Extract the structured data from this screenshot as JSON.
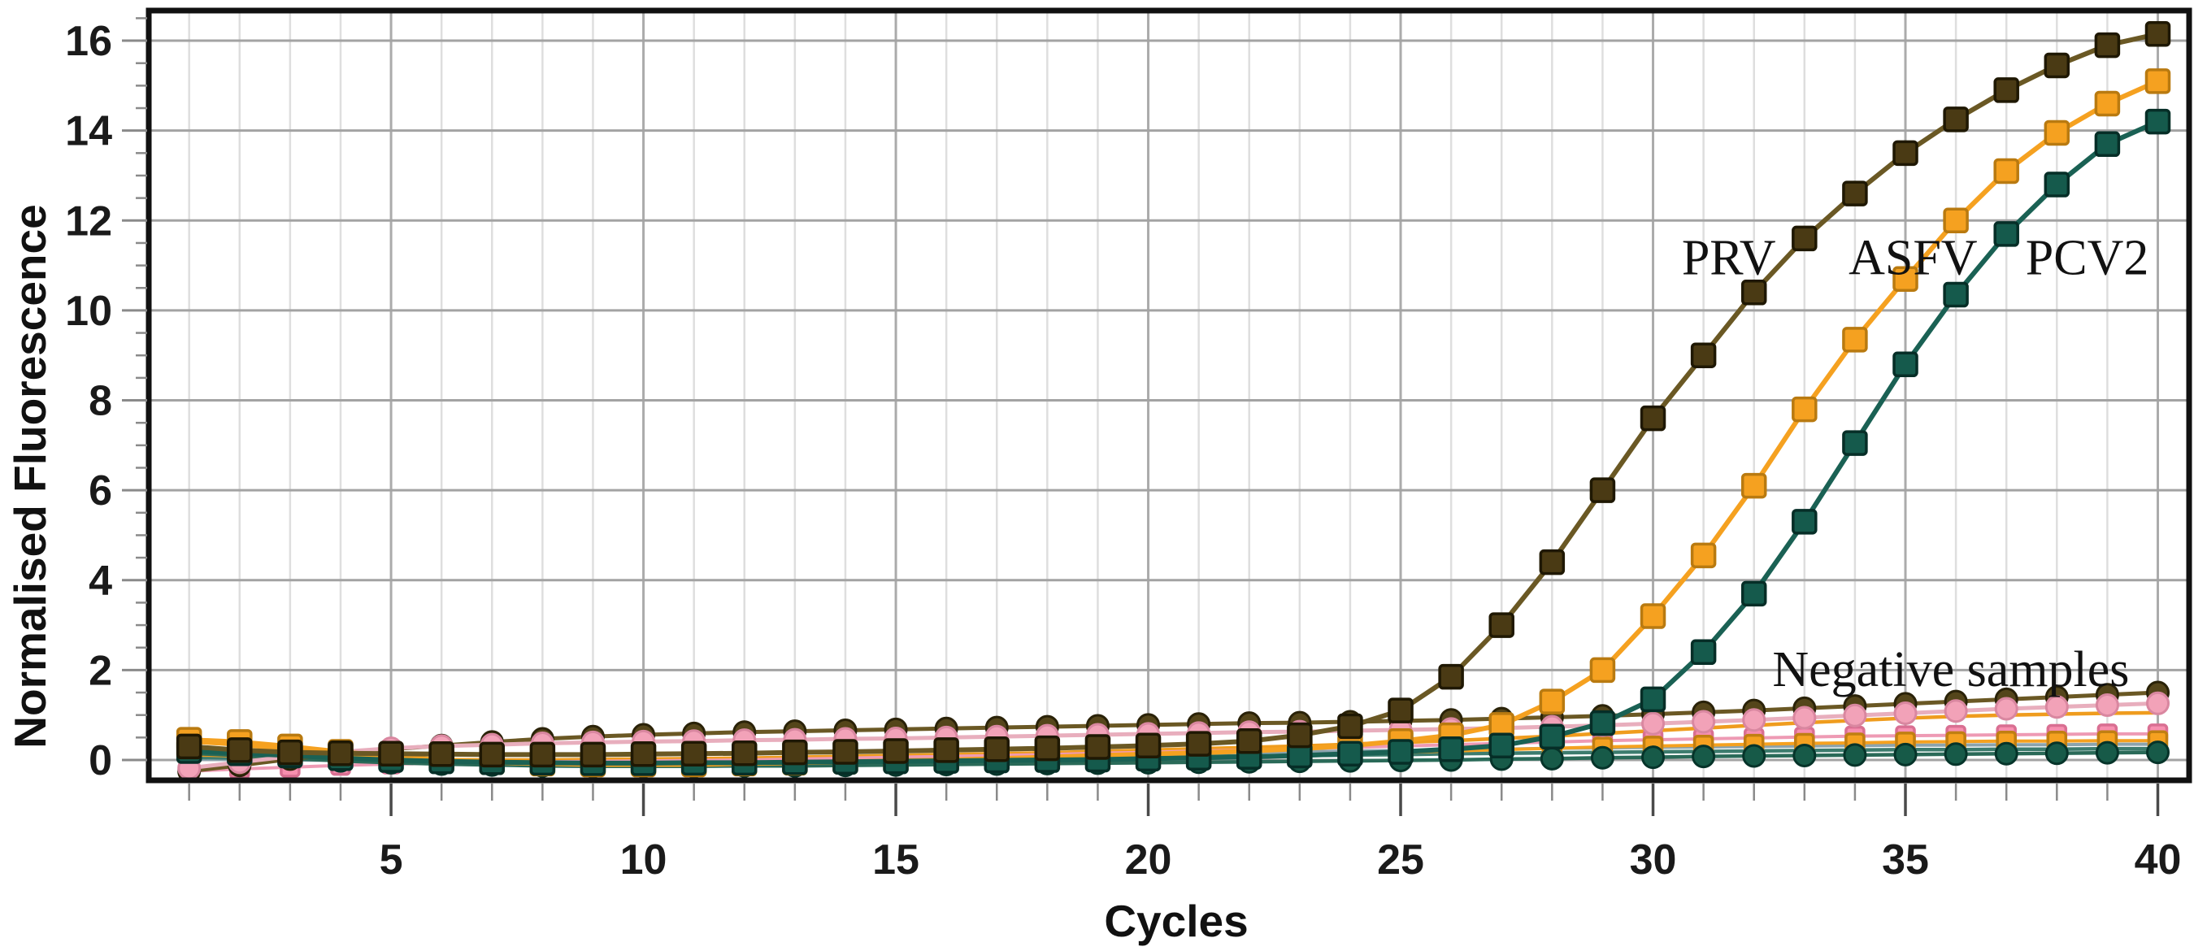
{
  "figure": {
    "background": "#ffffff",
    "frame_color": "#111111",
    "grid_minor_color": "#dedede",
    "grid_major_color": "#ababab",
    "grid_h_color": "#a3a3a3",
    "tick_major_color": "#4a4a4a",
    "tick_minor_color": "#8a8a8a"
  },
  "chart_data": {
    "type": "line",
    "title": "",
    "xlabel": "Cycles",
    "ylabel": "Normalised Fluorescence",
    "xlim": [
      0.2,
      40.62
    ],
    "ylim": [
      -0.452,
      16.67
    ],
    "x_major_ticks": [
      5,
      10,
      15,
      20,
      25,
      30,
      35,
      40
    ],
    "x_minor_tick_step": 1,
    "y_major_ticks": [
      0,
      2,
      4,
      6,
      8,
      10,
      12,
      14,
      16
    ],
    "y_minor_tick_step": 0.5,
    "grid": {
      "vertical_minor_every_cycle": true,
      "vertical_major_every_5": true,
      "horizontal_major_every_2": true
    },
    "legend_position": "none",
    "x": [
      1,
      2,
      3,
      4,
      5,
      6,
      7,
      8,
      9,
      10,
      11,
      12,
      13,
      14,
      15,
      16,
      17,
      18,
      19,
      20,
      21,
      22,
      23,
      24,
      25,
      26,
      27,
      28,
      29,
      30,
      31,
      32,
      33,
      34,
      35,
      36,
      37,
      38,
      39,
      40
    ],
    "series": [
      {
        "name": "negative-gray-line",
        "group": "Negative samples",
        "marker": "none",
        "line_color": "#8ba3ad",
        "line_width": 4,
        "values": [
          0.02,
          0.01,
          0.0,
          -0.01,
          -0.02,
          -0.02,
          -0.02,
          -0.02,
          -0.01,
          0.0,
          0.01,
          0.02,
          0.03,
          0.05,
          0.06,
          0.08,
          0.09,
          0.11,
          0.12,
          0.14,
          0.15,
          0.17,
          0.18,
          0.2,
          0.21,
          0.23,
          0.24,
          0.26,
          0.27,
          0.28,
          0.29,
          0.3,
          0.31,
          0.32,
          0.33,
          0.33,
          0.34,
          0.34,
          0.35,
          0.35
        ]
      },
      {
        "name": "negative-teal-line",
        "group": "Negative samples",
        "marker": "none",
        "line_color": "#3d7c6e",
        "line_width": 4.5,
        "values": [
          0.06,
          0.04,
          0.02,
          0.0,
          -0.02,
          -0.03,
          -0.04,
          -0.04,
          -0.04,
          -0.03,
          -0.02,
          -0.01,
          0.0,
          0.01,
          0.02,
          0.03,
          0.04,
          0.05,
          0.06,
          0.07,
          0.08,
          0.09,
          0.1,
          0.11,
          0.12,
          0.14,
          0.15,
          0.16,
          0.17,
          0.18,
          0.19,
          0.2,
          0.21,
          0.22,
          0.23,
          0.23,
          0.24,
          0.24,
          0.25,
          0.25
        ]
      },
      {
        "name": "negative-orange-line",
        "group": "Negative samples",
        "marker": "none",
        "line_color": "#ef9c1e",
        "line_width": 4.5,
        "values": [
          0.12,
          0.09,
          0.06,
          0.04,
          0.02,
          0.01,
          0.0,
          0.0,
          0.01,
          0.02,
          0.03,
          0.04,
          0.06,
          0.08,
          0.1,
          0.12,
          0.14,
          0.16,
          0.19,
          0.22,
          0.25,
          0.28,
          0.31,
          0.35,
          0.39,
          0.43,
          0.48,
          0.53,
          0.59,
          0.65,
          0.71,
          0.77,
          0.83,
          0.88,
          0.93,
          0.97,
          1.0,
          1.02,
          1.04,
          1.05
        ]
      },
      {
        "name": "negative-pink-squares",
        "group": "Negative samples",
        "marker": "square",
        "marker_size": 22,
        "fill": "#f78faf",
        "marker_stroke": "#d96f92",
        "line_color": "#ee9ab4",
        "line_width": 4,
        "values": [
          -0.25,
          -0.2,
          -0.16,
          -0.12,
          -0.09,
          -0.07,
          -0.05,
          -0.04,
          -0.03,
          -0.02,
          -0.01,
          0.0,
          0.02,
          0.04,
          0.06,
          0.08,
          0.1,
          0.12,
          0.15,
          0.17,
          0.2,
          0.22,
          0.25,
          0.28,
          0.31,
          0.34,
          0.37,
          0.4,
          0.43,
          0.45,
          0.47,
          0.49,
          0.51,
          0.53,
          0.54,
          0.55,
          0.56,
          0.57,
          0.58,
          0.58
        ]
      },
      {
        "name": "negative-orange-squares",
        "group": "Negative samples",
        "marker": "square",
        "marker_size": 22,
        "fill": "#f5a120",
        "marker_stroke": "#c07f12",
        "line_color": "#f5a120",
        "line_width": 4,
        "values": [
          0.4,
          0.33,
          0.22,
          0.1,
          0.0,
          -0.06,
          -0.1,
          -0.12,
          -0.13,
          -0.13,
          -0.12,
          -0.11,
          -0.1,
          -0.08,
          -0.07,
          -0.05,
          -0.03,
          -0.01,
          0.01,
          0.03,
          0.06,
          0.08,
          0.11,
          0.14,
          0.17,
          0.2,
          0.23,
          0.26,
          0.29,
          0.31,
          0.33,
          0.35,
          0.37,
          0.38,
          0.4,
          0.41,
          0.42,
          0.42,
          0.43,
          0.43
        ]
      },
      {
        "name": "negative-green-circles",
        "group": "Negative samples",
        "marker": "circle",
        "marker_size": 26,
        "fill": "#175a48",
        "marker_stroke": "#06342a",
        "line_color": "#2a6a58",
        "line_width": 4.5,
        "values": [
          0.15,
          0.1,
          0.04,
          -0.02,
          -0.06,
          -0.09,
          -0.11,
          -0.13,
          -0.14,
          -0.14,
          -0.14,
          -0.13,
          -0.13,
          -0.12,
          -0.11,
          -0.1,
          -0.09,
          -0.08,
          -0.07,
          -0.06,
          -0.05,
          -0.04,
          -0.03,
          -0.02,
          -0.01,
          0.0,
          0.02,
          0.03,
          0.05,
          0.06,
          0.08,
          0.09,
          0.1,
          0.11,
          0.12,
          0.13,
          0.14,
          0.15,
          0.16,
          0.17
        ]
      },
      {
        "name": "negative-brown-circles",
        "group": "Negative samples",
        "marker": "circle",
        "marker_size": 26,
        "fill": "#54451a",
        "marker_stroke": "#2a2208",
        "line_color": "#6a5824",
        "line_width": 5,
        "values": [
          -0.25,
          -0.12,
          0.02,
          0.14,
          0.24,
          0.32,
          0.4,
          0.47,
          0.52,
          0.56,
          0.59,
          0.62,
          0.64,
          0.66,
          0.68,
          0.7,
          0.72,
          0.74,
          0.76,
          0.78,
          0.8,
          0.82,
          0.83,
          0.85,
          0.87,
          0.89,
          0.92,
          0.95,
          0.98,
          1.02,
          1.06,
          1.1,
          1.15,
          1.2,
          1.25,
          1.3,
          1.35,
          1.4,
          1.45,
          1.5
        ]
      },
      {
        "name": "negative-pink-circles",
        "group": "Negative samples",
        "marker": "circle",
        "marker_size": 26,
        "fill": "#f2a2b8",
        "marker_stroke": "#d987a0",
        "line_color": "#e8aebd",
        "line_width": 5,
        "values": [
          -0.18,
          -0.05,
          0.08,
          0.18,
          0.26,
          0.31,
          0.34,
          0.37,
          0.39,
          0.41,
          0.42,
          0.44,
          0.45,
          0.47,
          0.48,
          0.5,
          0.52,
          0.54,
          0.56,
          0.58,
          0.6,
          0.62,
          0.63,
          0.65,
          0.67,
          0.69,
          0.71,
          0.74,
          0.77,
          0.81,
          0.85,
          0.89,
          0.94,
          0.99,
          1.04,
          1.09,
          1.14,
          1.18,
          1.22,
          1.26
        ]
      },
      {
        "name": "ASFV",
        "group": "positive",
        "marker": "square",
        "marker_size": 28,
        "fill": "#f5a120",
        "marker_stroke": "#b97a10",
        "line_color": "#f5a120",
        "line_width": 6,
        "values": [
          0.45,
          0.4,
          0.3,
          0.18,
          0.08,
          0.0,
          -0.05,
          -0.08,
          -0.1,
          -0.1,
          -0.1,
          -0.08,
          -0.06,
          -0.04,
          -0.02,
          0.0,
          0.03,
          0.06,
          0.1,
          0.13,
          0.16,
          0.2,
          0.25,
          0.32,
          0.42,
          0.55,
          0.78,
          1.3,
          2.0,
          3.2,
          4.55,
          6.1,
          7.8,
          9.35,
          10.7,
          12.0,
          13.1,
          13.95,
          14.6,
          15.1
        ]
      },
      {
        "name": "PCV2",
        "group": "positive",
        "marker": "square",
        "marker_size": 28,
        "fill": "#155a4c",
        "marker_stroke": "#062e27",
        "line_color": "#1a6154",
        "line_width": 6,
        "values": [
          0.2,
          0.15,
          0.1,
          0.04,
          0.0,
          -0.03,
          -0.05,
          -0.06,
          -0.07,
          -0.07,
          -0.06,
          -0.06,
          -0.05,
          -0.04,
          -0.03,
          -0.02,
          -0.01,
          0.0,
          0.01,
          0.03,
          0.05,
          0.07,
          0.1,
          0.14,
          0.18,
          0.24,
          0.32,
          0.52,
          0.82,
          1.35,
          2.4,
          3.7,
          5.3,
          7.05,
          8.8,
          10.35,
          11.7,
          12.8,
          13.7,
          14.2
        ]
      },
      {
        "name": "PRV",
        "group": "positive",
        "marker": "square",
        "marker_size": 28,
        "fill": "#4a3a14",
        "marker_stroke": "#1f1803",
        "line_color": "#6a5824",
        "line_width": 6,
        "values": [
          0.3,
          0.22,
          0.17,
          0.15,
          0.14,
          0.13,
          0.12,
          0.12,
          0.12,
          0.13,
          0.14,
          0.15,
          0.17,
          0.18,
          0.2,
          0.22,
          0.24,
          0.26,
          0.29,
          0.32,
          0.36,
          0.42,
          0.55,
          0.75,
          1.1,
          1.85,
          3.0,
          4.4,
          6.0,
          7.6,
          9.0,
          10.4,
          11.6,
          12.6,
          13.5,
          14.25,
          14.9,
          15.45,
          15.9,
          16.15
        ]
      }
    ],
    "annotations": [
      {
        "text": "PRV",
        "x": 31.5,
        "y": 11.2
      },
      {
        "text": "ASFV",
        "x": 35.15,
        "y": 11.2
      },
      {
        "text": "PCV2",
        "x": 38.6,
        "y": 11.2
      },
      {
        "text": "Negative samples",
        "x": 35.9,
        "y": 2.04
      }
    ]
  }
}
